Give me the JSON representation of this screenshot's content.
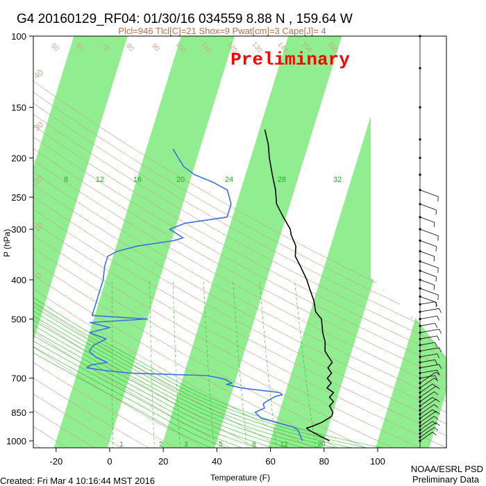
{
  "header": {
    "title": "G4 20160129_RF04: 01/30/16 034559   8.88 N , 159.64 W",
    "params": "Plcl=946 Tlcl[C]=21 Shox=9 Pwat[cm]=3 Cape[J]= 4"
  },
  "stamp": "Preliminary",
  "footer": {
    "created": "Created: Fri Mar  4 10:16:44 MST 2016",
    "org": "NOAA/ESRL PSD",
    "status": "Preliminary Data"
  },
  "colors": {
    "green_band": "#90ee90",
    "temperature": "#000000",
    "dewpoint": "#3a6fe0",
    "dry_adiabat": "#c9a88a",
    "stamp": "#ff0000",
    "moist_adiabat": "#22bb22"
  },
  "chart_data": {
    "type": "skew-t",
    "xlabel": "Temperature (F)",
    "ylabel": "P (hPa)",
    "x_ticks": [
      "-20",
      "0",
      "20",
      "40",
      "60",
      "80",
      "100"
    ],
    "y_ticks": [
      "100",
      "150",
      "200",
      "250",
      "300",
      "400",
      "500",
      "700",
      "850",
      "1000"
    ],
    "x_range": [
      -28,
      105
    ],
    "y_range": [
      100,
      1000
    ],
    "y_scale": "log",
    "skew_label_ticks": [
      "8",
      "12",
      "16",
      "20",
      "24",
      "28",
      "32"
    ],
    "dry_adiabat_labels": [
      "50",
      "60",
      "70",
      "80",
      "90",
      "100",
      "110",
      "120",
      "130",
      "140",
      "150",
      "160"
    ],
    "isotherm_labels": [
      "30",
      "20",
      "10",
      "0",
      "-10",
      "-20",
      "-30",
      "40",
      "30",
      "20",
      "10",
      "0"
    ],
    "mixing_ratio_labels": [
      "1",
      "2",
      "3",
      "5",
      "8",
      "12",
      "20"
    ],
    "series": [
      {
        "name": "",
        "kind": "temperature",
        "points": [
          [
            1000,
            82
          ],
          [
            980,
            79
          ],
          [
            960,
            76
          ],
          [
            940,
            73
          ],
          [
            930,
            72
          ],
          [
            920,
            74
          ],
          [
            900,
            77
          ],
          [
            870,
            80
          ],
          [
            850,
            80
          ],
          [
            820,
            78
          ],
          [
            800,
            79
          ],
          [
            780,
            77
          ],
          [
            760,
            78
          ],
          [
            740,
            75
          ],
          [
            720,
            76
          ],
          [
            700,
            74
          ],
          [
            680,
            75
          ],
          [
            660,
            73
          ],
          [
            640,
            74
          ],
          [
            620,
            72
          ],
          [
            600,
            70
          ],
          [
            570,
            69
          ],
          [
            540,
            67
          ],
          [
            520,
            66
          ],
          [
            500,
            65
          ],
          [
            480,
            62
          ],
          [
            450,
            60
          ],
          [
            420,
            57
          ],
          [
            400,
            55
          ],
          [
            370,
            51
          ],
          [
            350,
            48
          ],
          [
            330,
            47
          ],
          [
            310,
            44
          ],
          [
            300,
            43
          ],
          [
            280,
            39
          ],
          [
            260,
            35
          ],
          [
            250,
            34
          ],
          [
            240,
            33
          ],
          [
            220,
            30
          ],
          [
            200,
            27
          ],
          [
            185,
            25
          ],
          [
            170,
            22
          ]
        ]
      },
      {
        "name": "",
        "kind": "dewpoint",
        "points": [
          [
            1000,
            72
          ],
          [
            980,
            71
          ],
          [
            960,
            70
          ],
          [
            940,
            69
          ],
          [
            925,
            67
          ],
          [
            900,
            60
          ],
          [
            880,
            54
          ],
          [
            860,
            52
          ],
          [
            850,
            51
          ],
          [
            830,
            54
          ],
          [
            810,
            53
          ],
          [
            790,
            55
          ],
          [
            775,
            57
          ],
          [
            770,
            59
          ],
          [
            760,
            58
          ],
          [
            740,
            43
          ],
          [
            725,
            37
          ],
          [
            720,
            39
          ],
          [
            705,
            36
          ],
          [
            700,
            34
          ],
          [
            690,
            29
          ],
          [
            680,
            0
          ],
          [
            670,
            -10
          ],
          [
            660,
            -17
          ],
          [
            650,
            -16
          ],
          [
            640,
            -10
          ],
          [
            620,
            -15
          ],
          [
            600,
            -18
          ],
          [
            580,
            -17
          ],
          [
            560,
            -13
          ],
          [
            540,
            -20
          ],
          [
            525,
            -13
          ],
          [
            510,
            -21
          ],
          [
            500,
            0
          ],
          [
            490,
            -21
          ],
          [
            450,
            -21
          ],
          [
            400,
            -21
          ],
          [
            370,
            -22
          ],
          [
            350,
            -22
          ],
          [
            340,
            -19
          ],
          [
            330,
            -12
          ],
          [
            320,
            1
          ],
          [
            315,
            4
          ],
          [
            300,
            -2
          ],
          [
            290,
            3
          ],
          [
            280,
            18
          ],
          [
            260,
            18
          ],
          [
            240,
            15
          ],
          [
            230,
            9
          ],
          [
            220,
            1
          ],
          [
            210,
            -4
          ],
          [
            200,
            -7
          ],
          [
            190,
            -10
          ]
        ]
      }
    ],
    "wind_levels": [
      1000,
      980,
      960,
      940,
      920,
      900,
      880,
      860,
      840,
      820,
      800,
      780,
      760,
      740,
      720,
      700,
      680,
      660,
      640,
      620,
      600,
      580,
      560,
      540,
      520,
      500,
      480,
      460,
      440,
      420,
      400,
      380,
      360,
      340,
      320,
      300,
      280,
      260,
      240,
      220,
      200,
      180,
      150,
      120,
      100
    ]
  }
}
